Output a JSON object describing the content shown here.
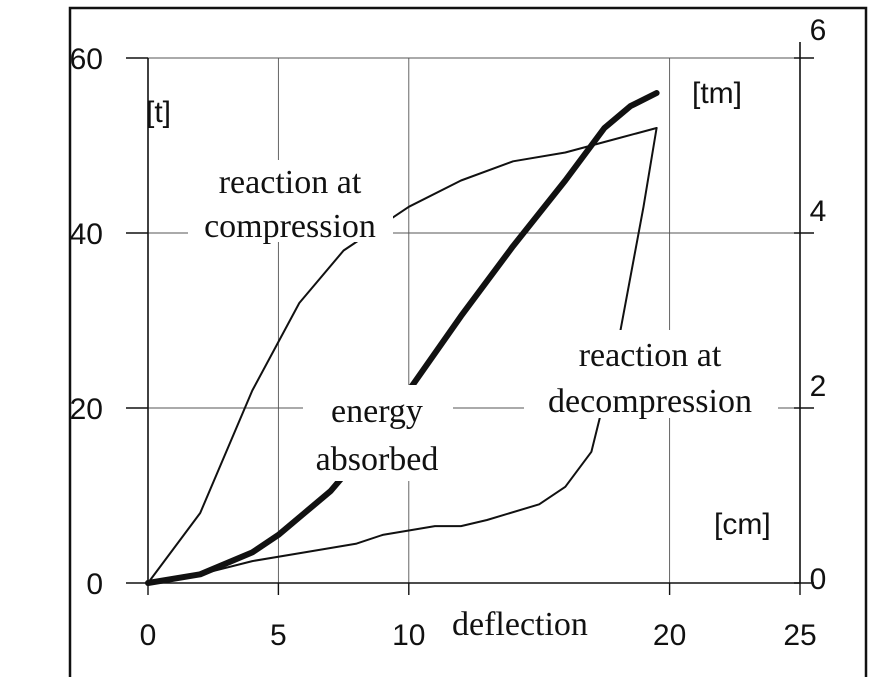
{
  "chart_data": {
    "type": "line",
    "xlabel": "deflection",
    "x_unit": "[cm]",
    "xlim": [
      0,
      25
    ],
    "x_ticks": [
      0,
      5,
      10,
      20,
      25
    ],
    "y_left": {
      "unit": "[t]",
      "ylim": [
        0,
        60
      ],
      "ticks": [
        0,
        20,
        40,
        60
      ]
    },
    "y_right": {
      "unit": "[tm]",
      "ylim": [
        0,
        6
      ],
      "ticks": [
        0,
        2,
        4,
        6
      ]
    },
    "grid": true,
    "series": [
      {
        "key": "compression",
        "name": "reaction at compression",
        "axis": "left",
        "style": "thin",
        "points": [
          [
            0,
            0
          ],
          [
            2,
            8
          ],
          [
            4,
            22
          ],
          [
            5.8,
            32
          ],
          [
            7.5,
            38
          ],
          [
            10,
            43
          ],
          [
            12,
            46
          ],
          [
            14,
            48.2
          ],
          [
            16,
            49.2
          ],
          [
            18,
            50.8
          ],
          [
            19.5,
            52
          ]
        ]
      },
      {
        "key": "decompression",
        "name": "reaction at decompression",
        "axis": "left",
        "style": "thin",
        "points": [
          [
            0,
            0
          ],
          [
            2,
            1
          ],
          [
            4,
            2.5
          ],
          [
            6,
            3.5
          ],
          [
            8,
            4.5
          ],
          [
            9,
            5.5
          ],
          [
            11,
            6.5
          ],
          [
            12,
            6.5
          ],
          [
            13,
            7.2
          ],
          [
            15,
            9
          ],
          [
            16,
            11
          ],
          [
            17,
            15
          ],
          [
            18,
            27
          ],
          [
            19,
            43
          ],
          [
            19.5,
            52
          ]
        ]
      },
      {
        "key": "energy",
        "name": "energy absorbed",
        "axis": "right",
        "style": "thick",
        "points": [
          [
            0,
            0
          ],
          [
            2,
            0.1
          ],
          [
            4,
            0.35
          ],
          [
            5,
            0.55
          ],
          [
            6,
            0.8
          ],
          [
            7,
            1.05
          ],
          [
            8,
            1.4
          ],
          [
            10,
            2.2
          ],
          [
            12,
            3.05
          ],
          [
            14,
            3.85
          ],
          [
            16,
            4.6
          ],
          [
            17.5,
            5.2
          ],
          [
            18.5,
            5.45
          ],
          [
            19.5,
            5.6
          ]
        ]
      }
    ],
    "annotations": [
      {
        "key": "compression",
        "lines": [
          "reaction at",
          "compression"
        ]
      },
      {
        "key": "energy",
        "lines": [
          "energy",
          "absorbed"
        ]
      },
      {
        "key": "decompression",
        "lines": [
          "reaction at",
          "decompression"
        ]
      }
    ]
  }
}
